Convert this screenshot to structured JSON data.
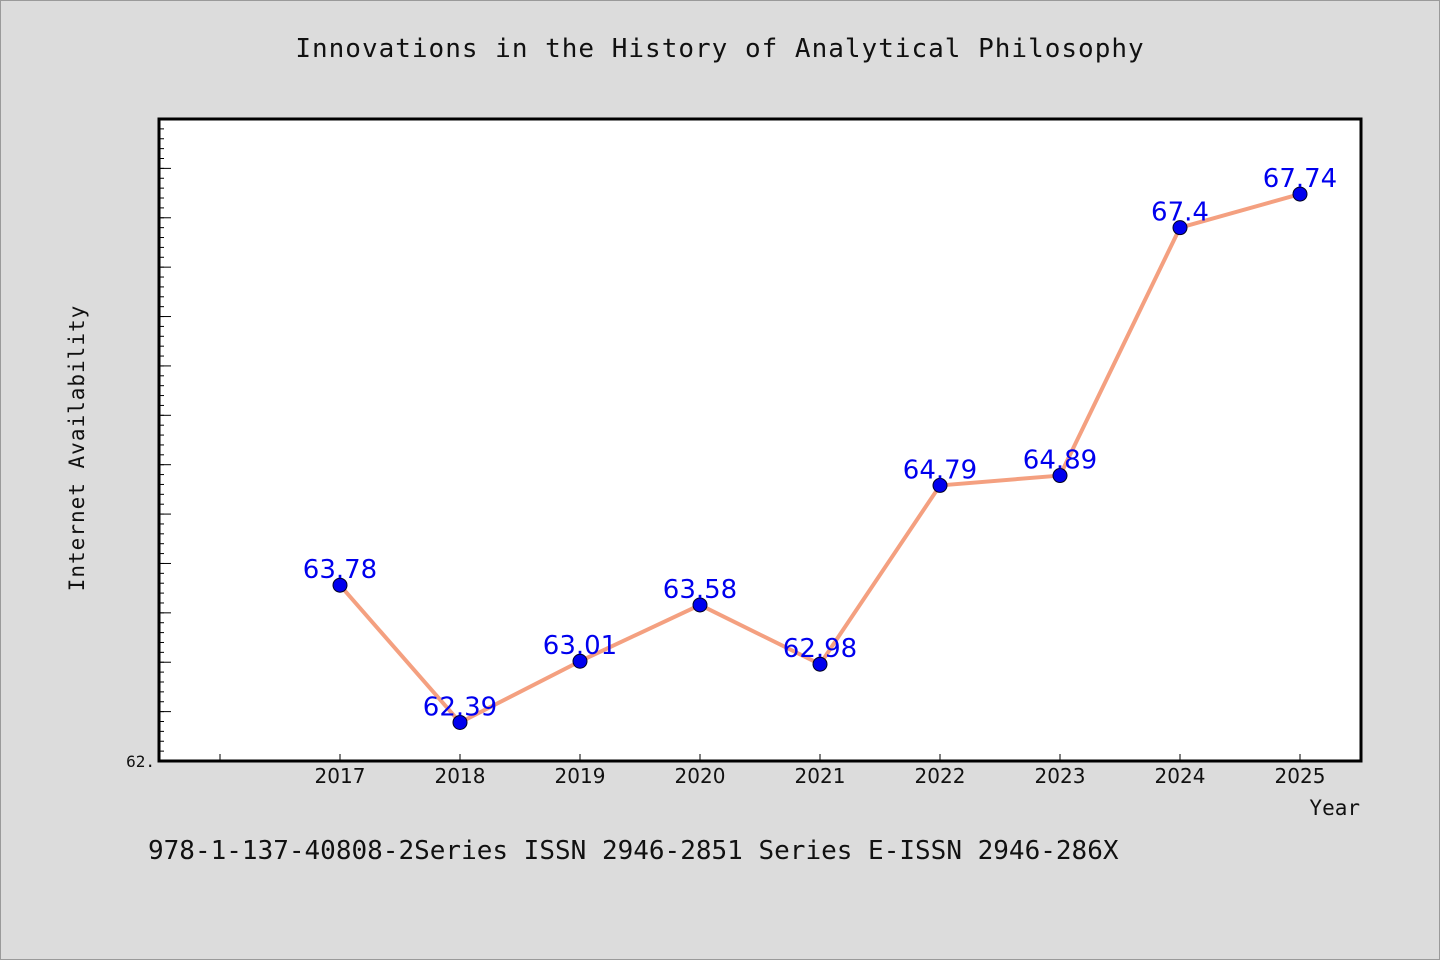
{
  "chart_data": {
    "type": "line",
    "title": "Innovations in the History of Analytical Philosophy",
    "xlabel": "Year",
    "ylabel": "Internet Availability",
    "categories": [
      "2017",
      "2018",
      "2019",
      "2020",
      "2021",
      "2022",
      "2023",
      "2024",
      "2025"
    ],
    "series": [
      {
        "values": [
          63.78,
          62.39,
          63.01,
          63.58,
          62.98,
          64.79,
          64.89,
          67.4,
          67.74
        ],
        "labels": [
          "63.78",
          "62.39",
          "63.01",
          "63.58",
          "62.98",
          "64.79",
          "64.89",
          "67.4",
          "67.74"
        ]
      }
    ],
    "ylim": [
      62.0,
      68.5
    ],
    "y_tick_labels": [
      "62."
    ],
    "grid": false,
    "line_color": "#f4a080",
    "marker_color": "#0000ee",
    "label_color": "#0000ee"
  },
  "footer": {
    "text": "978-1-137-40808-2Series ISSN 2946-2851 Series E-ISSN 2946-286X"
  }
}
